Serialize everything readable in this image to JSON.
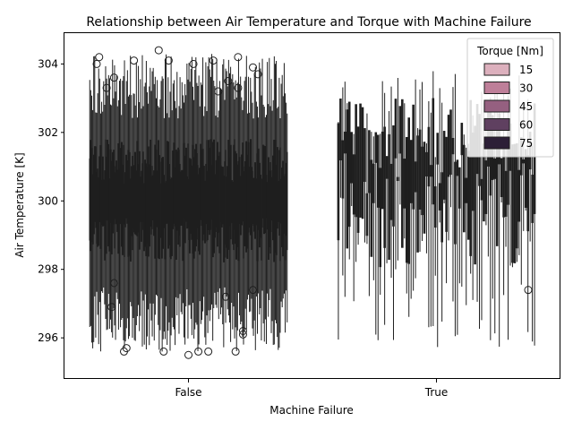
{
  "chart_data": {
    "type": "box",
    "title": "Relationship between Air Temperature and Torque with Machine Failure",
    "xlabel": "Machine Failure",
    "ylabel": "Air Temperature [K]",
    "categories": [
      "False",
      "True"
    ],
    "yticks": [
      296,
      298,
      300,
      302,
      304
    ],
    "ylim": [
      294.8,
      304.9
    ],
    "grid": false,
    "legend": {
      "title": "Torque [Nm]",
      "placement": "top-right",
      "entries": [
        {
          "label": "15",
          "color": "#dcb0bd"
        },
        {
          "label": "30",
          "color": "#be7f99"
        },
        {
          "label": "45",
          "color": "#956080"
        },
        {
          "label": "60",
          "color": "#5f4060"
        },
        {
          "label": "75",
          "color": "#2c1f37"
        }
      ]
    },
    "box_color": "#1f1f1f",
    "groups": [
      {
        "category": "False",
        "approx_box_count": 200,
        "approx_median_range": [
          299.2,
          300.4
        ],
        "q1_range": [
          298.2,
          299.5
        ],
        "q3_range": [
          300.5,
          301.8
        ],
        "whisker_low_range": [
          295.6,
          297.5
        ],
        "whisker_high_range": [
          302.4,
          304.3
        ],
        "outliers": [
          [
            -0.36,
            304.2
          ],
          [
            -0.12,
            304.4
          ],
          [
            -0.22,
            304.1
          ],
          [
            -0.08,
            304.1
          ],
          [
            0.02,
            304.0
          ],
          [
            0.1,
            304.1
          ],
          [
            0.2,
            304.2
          ],
          [
            0.26,
            303.9
          ],
          [
            0.28,
            303.7
          ],
          [
            0.16,
            303.5
          ],
          [
            0.2,
            303.3
          ],
          [
            0.12,
            303.2
          ],
          [
            -0.3,
            303.6
          ],
          [
            -0.33,
            303.3
          ],
          [
            -0.37,
            304.0
          ],
          [
            -0.3,
            297.6
          ],
          [
            -0.31,
            296.9
          ],
          [
            -0.26,
            295.6
          ],
          [
            -0.25,
            295.7
          ],
          [
            -0.1,
            295.6
          ],
          [
            0.0,
            295.5
          ],
          [
            0.04,
            295.6
          ],
          [
            0.08,
            295.6
          ],
          [
            0.22,
            296.2
          ],
          [
            0.22,
            296.1
          ],
          [
            0.19,
            295.6
          ],
          [
            0.15,
            297.2
          ],
          [
            0.26,
            297.4
          ]
        ]
      },
      {
        "category": "True",
        "approx_box_count": 90,
        "approx_median_range": [
          299.5,
          302.3
        ],
        "q1_range": [
          298.0,
          301.5
        ],
        "q3_range": [
          300.1,
          303.0
        ],
        "whisker_low_range": [
          295.7,
          300.4
        ],
        "whisker_high_range": [
          300.5,
          303.8
        ],
        "outliers": [
          [
            0.37,
            297.4
          ]
        ]
      }
    ]
  }
}
